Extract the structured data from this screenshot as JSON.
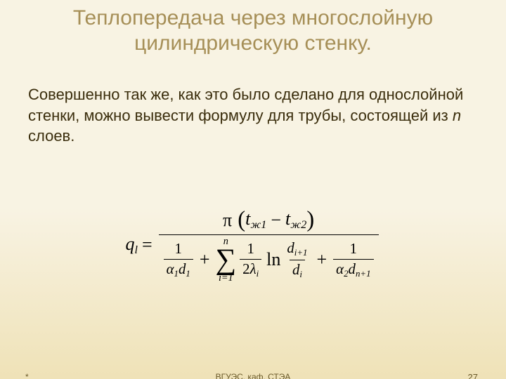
{
  "colors": {
    "background_top": "#f8f3e3",
    "background_bottom": "#efe2b7",
    "title": "#a68f57",
    "body": "#3a2d0c",
    "formula": "#000000",
    "footer": "#6a5a2a"
  },
  "title": {
    "line1": "Теплопередача через многослойную",
    "line2": "цилиндрическую стенку.",
    "fontsize": 30
  },
  "body": {
    "text_before_n": "Совершенно так же, как это было сделано для однослойной стенки, можно вывести формулу для трубы, состоящей из ",
    "n": "n",
    "text_after_n": " слоев.",
    "fontsize": 22
  },
  "formula": {
    "ql": "q",
    "ql_sub": "l",
    "eq": "=",
    "pi": "π",
    "t1": "t",
    "t1_sub": "ж1",
    "minus": "−",
    "t2": "t",
    "t2_sub": "ж2",
    "one_a": "1",
    "alpha1": "α",
    "alpha1_sub": "1",
    "d1": "d",
    "d1_sub": "1",
    "plus1": "+",
    "sum_top": "n",
    "sum_bot": "i=1",
    "one_b": "1",
    "two": "2",
    "lambda": "λ",
    "lambda_sub": "i",
    "ln": "ln",
    "dnum": "d",
    "dnum_sub": "i+1",
    "dden": "d",
    "dden_sub": "i",
    "plus2": "+",
    "one_c": "1",
    "alpha2": "α",
    "alpha2_sub": "2",
    "dn1": "d",
    "dn1_sub": "n+1",
    "fontsize": 26
  },
  "footer": {
    "left": "*",
    "center": "ВГУЭС, каф. СТЭА",
    "page": "27",
    "fontsize": 12
  }
}
